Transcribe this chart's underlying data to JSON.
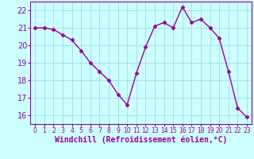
{
  "x": [
    0,
    1,
    2,
    3,
    4,
    5,
    6,
    7,
    8,
    9,
    10,
    11,
    12,
    13,
    14,
    15,
    16,
    17,
    18,
    19,
    20,
    21,
    22,
    23
  ],
  "y": [
    21.0,
    21.0,
    20.9,
    20.6,
    20.3,
    19.7,
    19.0,
    18.5,
    18.0,
    17.2,
    16.6,
    18.4,
    19.9,
    21.1,
    21.3,
    21.0,
    22.2,
    21.3,
    21.5,
    21.0,
    20.4,
    18.5,
    16.4,
    15.9
  ],
  "line_color": "#990099",
  "marker": "D",
  "markersize": 2.5,
  "linewidth": 1.0,
  "background_color": "#ccffff",
  "grid_color": "#aaddee",
  "xlabel": "Windchill (Refroidissement éolien,°C)",
  "xlabel_color": "#990099",
  "tick_color": "#990099",
  "ylabel_ticks": [
    16,
    17,
    18,
    19,
    20,
    21,
    22
  ],
  "xtick_labels": [
    "0",
    "1",
    "2",
    "3",
    "4",
    "5",
    "6",
    "7",
    "8",
    "9",
    "10",
    "11",
    "12",
    "13",
    "14",
    "15",
    "16",
    "17",
    "18",
    "19",
    "20",
    "21",
    "22",
    "23"
  ],
  "ylim": [
    15.5,
    22.5
  ],
  "xlim": [
    -0.5,
    23.5
  ],
  "ytick_fontsize": 7,
  "xtick_fontsize": 5.5,
  "xlabel_fontsize": 7
}
